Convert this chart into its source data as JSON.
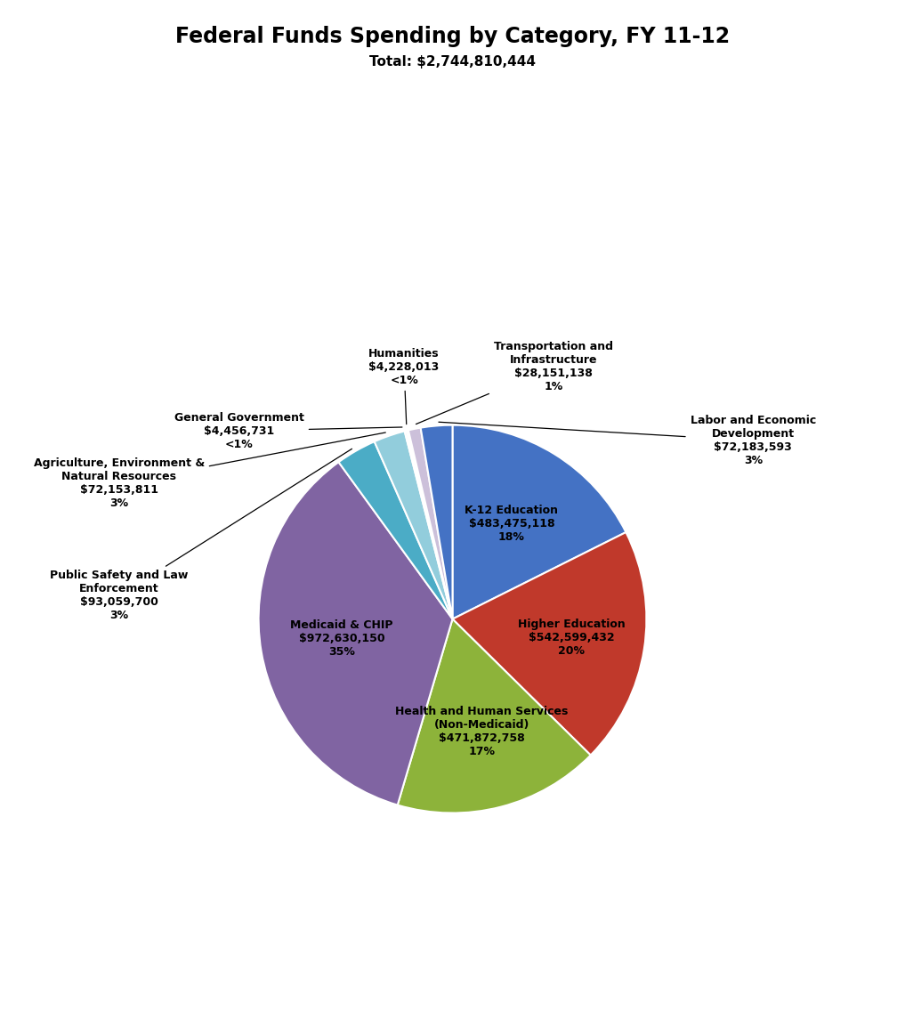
{
  "title": "Federal Funds Spending by Category, FY 11-12",
  "subtitle": "Total: $2,744,810,444",
  "values": [
    483475118,
    542599432,
    471872758,
    972630150,
    93059700,
    72153811,
    4456731,
    4228013,
    28151138,
    72183593
  ],
  "colors": [
    "#4472C4",
    "#C0392B",
    "#8DB33A",
    "#8064A2",
    "#4BACC6",
    "#92CDDC",
    "#B8CCE4",
    "#C4D79B",
    "#CCC0DA",
    "#4472C4"
  ],
  "inside_labels": [
    "K-12 Education\n$483,475,118\n18%",
    "Higher Education\n$542,599,432\n20%",
    "Health and Human Services\n(Non-Medicaid)\n$471,872,758\n17%",
    "Medicaid & CHIP\n$972,630,150\n35%",
    "",
    "",
    "",
    "",
    "",
    ""
  ],
  "outside_labels": [
    "",
    "",
    "",
    "",
    "Public Safety and Law\nEnforcement\n$93,059,700\n3%",
    "Agriculture, Environment &\nNatural Resources\n$72,153,811\n3%",
    "General Government\n$4,456,731\n<1%",
    "Humanities\n$4,228,013\n<1%",
    "Transportation and\nInfrastructure\n$28,151,138\n1%",
    "Labor and Economic\nDevelopment\n$72,183,593\n3%"
  ],
  "background_color": "#FFFFFF"
}
